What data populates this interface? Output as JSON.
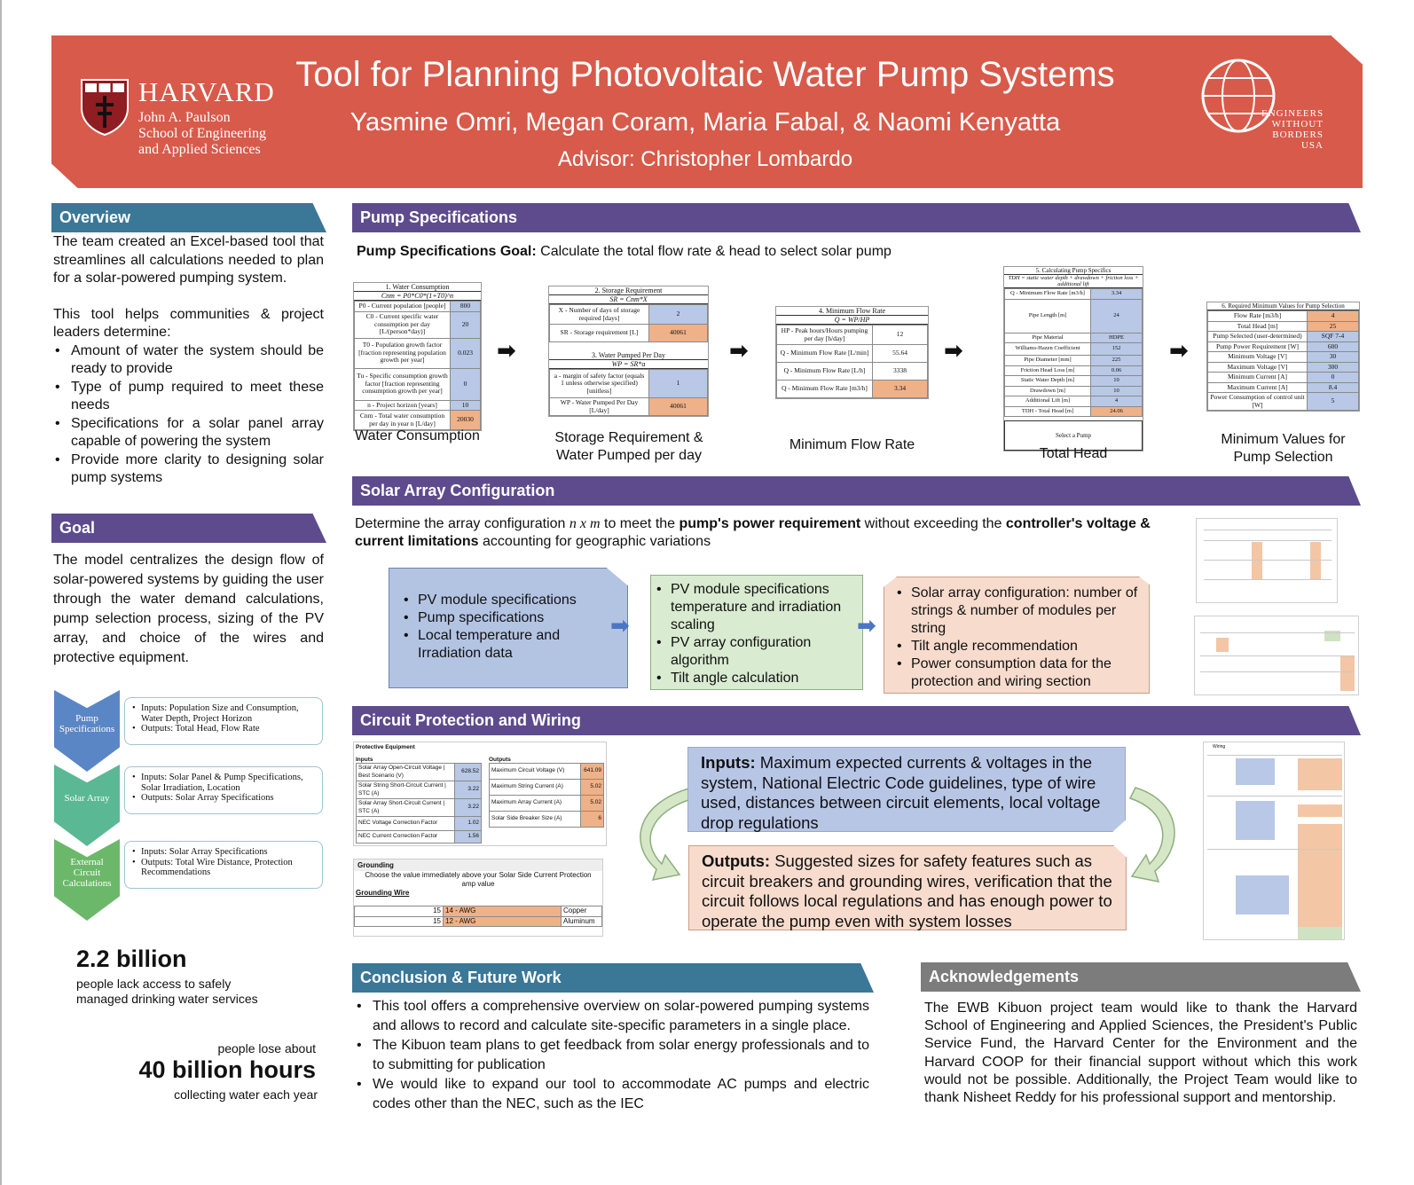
{
  "header": {
    "title": "Tool for Planning Photovoltaic Water Pump Systems",
    "authors": "Yasmine Omri, Megan Coram, Maria Fabal, & Naomi Kenyatta",
    "advisor": "Advisor: Christopher Lombardo",
    "harvard_name": "HARVARD",
    "harvard_sub_1": "John A. Paulson",
    "harvard_sub_2": "School of Engineering",
    "harvard_sub_3": "and Applied Sciences",
    "ewb_1": "ENGINEERS",
    "ewb_2": "WITHOUT",
    "ewb_3": "BORDERS",
    "ewb_4": "USA"
  },
  "overview": {
    "heading": "Overview",
    "p1": "The team created an Excel-based tool that streamlines all calculations needed to plan for a solar-powered pumping system.",
    "p2": "This tool helps communities & project leaders determine:",
    "bullets": [
      "Amount of water the system should be ready to provide",
      "Type of pump required to meet these needs",
      "Specifications for a solar panel array capable of powering the system",
      "Provide more clarity to designing solar pump systems"
    ]
  },
  "goal": {
    "heading": "Goal",
    "text": "The model centralizes the design flow of solar-powered systems by guiding the user through the water demand calculations, pump selection process, sizing of the PV array, and choice of the wires and protective equipment."
  },
  "flow": [
    {
      "label": "Pump Specifications",
      "inputs": "Inputs: Population Size and Consumption, Water Depth, Project Horizon",
      "outputs": "Outputs: Total Head, Flow Rate"
    },
    {
      "label": "Solar Array",
      "inputs": "Inputs: Solar Panel & Pump Specifications, Solar Irradiation, Location",
      "outputs": "Outputs: Solar Array Specifications"
    },
    {
      "label": "External Circuit Calculations",
      "inputs": "Inputs: Solar Array Specifications",
      "outputs": "Outputs: Total Wire Distance, Protection Recommendations"
    }
  ],
  "stats": {
    "s1_big": "2.2 billion",
    "s1_small": "people lack access to safely managed drinking water services",
    "s2_top": "people lose about",
    "s2_big": "40 billion hours",
    "s2_small": "collecting water each year"
  },
  "pump": {
    "heading": "Pump Specifications",
    "goal_bold": "Pump Specifications Goal:",
    "goal_text": " Calculate the total flow rate & head to select solar pump",
    "captions": [
      "Water Consumption",
      "Storage Requirement & Water Pumped per day",
      "Minimum Flow Rate",
      "Total Head",
      "Minimum Values for Pump Selection"
    ],
    "t1": {
      "title": "1. Water Consumption",
      "formula": "Cnm = P0*C0*(1+T0)^n",
      "rows": [
        {
          "k": "P0 - Current population [people]",
          "v": "800"
        },
        {
          "k": "C0 - Current specific water consumption per day [L/(person*day)]",
          "v": "20"
        },
        {
          "k": "T0 - Population growth factor [fraction representing population growth per year]",
          "v": "0.023"
        },
        {
          "k": "Tu - Specific consumption growth factor [fraction representing consumption growth per year]",
          "v": "0"
        },
        {
          "k": "n - Project horizon [years]",
          "v": "10"
        },
        {
          "k": "Cnm - Total water consumption per day in year n [L/day]",
          "v": "20030"
        }
      ]
    },
    "t2": {
      "title": "2. Storage Requirement",
      "formula": "SR = Cnm*X",
      "rows": [
        {
          "k": "X - Number of days of storage required [days]",
          "v": "2"
        },
        {
          "k": "SR - Storage requirement [L]",
          "v": "40061"
        }
      ],
      "title2": "3. Water Pumped Per Day",
      "formula2": "WP = SR*a",
      "rows2": [
        {
          "k": "a - margin of safety factor (equals 1 unless otherwise specified) [unitless]",
          "v": "1"
        },
        {
          "k": "WP - Water Pumped Per Day [L/day]",
          "v": "40061"
        }
      ]
    },
    "t3": {
      "title": "4. Minimum Flow Rate",
      "formula": "Q = WP/HP",
      "rows": [
        {
          "k": "HP - Peak hours/Hours pumping per day [h/day]",
          "v": "12"
        },
        {
          "k": "Q - Minimum Flow Rate [L/min]",
          "v": "55.64"
        },
        {
          "k": "Q - Minimum Flow Rate [L/h]",
          "v": "3338"
        },
        {
          "k": "Q - Minimum Flow Rate [m3/h]",
          "v": "3.34"
        }
      ]
    },
    "t4": {
      "title": "5. Calculating Pump Specifics",
      "formula": "TDH = static water depth + drawdown + friction loss + additional lift",
      "rows": [
        {
          "k": "Q - Minimum Flow Rate [m3/h]",
          "v": "3.34"
        },
        {
          "k": "Pipe Length [m]",
          "v": "24"
        },
        {
          "k": "Pipe Material",
          "v": "HDPE"
        },
        {
          "k": "Williams-Hazen Coefficient",
          "v": "152"
        },
        {
          "k": "Pipe Diameter [mm]",
          "v": "225"
        },
        {
          "k": "Friction Head Loss [m]",
          "v": "0.06"
        },
        {
          "k": "Static Water Depth [m]",
          "v": "10"
        },
        {
          "k": "Drawdown [m]",
          "v": "10"
        },
        {
          "k": "Additional Lift [m]",
          "v": "4"
        },
        {
          "k": "TDH - Total Head [m]",
          "v": "24.06"
        }
      ],
      "button": "Select a Pump"
    },
    "t5": {
      "title": "6. Required Minimum Values for Pump Selection",
      "rows": [
        {
          "k": "Flow Rate [m3/h]",
          "v": "4"
        },
        {
          "k": "Total Head [m]",
          "v": "25"
        },
        {
          "k": "Pump Selected (user-determined)",
          "v": "SQF 7-4"
        },
        {
          "k": "Pump Power Requirement [W]",
          "v": "600"
        },
        {
          "k": "Minimum Voltage [V]",
          "v": "30"
        },
        {
          "k": "Maximum Voltage [V]",
          "v": "300"
        },
        {
          "k": "Minimum Current [A]",
          "v": "0"
        },
        {
          "k": "Maximum Current [A]",
          "v": "8.4"
        },
        {
          "k": "Power Consumption of control unit [W]",
          "v": "5"
        }
      ]
    }
  },
  "solar": {
    "heading": "Solar Array Configuration",
    "intro_1": "Determine the array configuration ",
    "intro_nxm": "n x m",
    "intro_2": " to meet the ",
    "intro_b1": "pump's power requirement",
    "intro_3": " without exceeding the ",
    "intro_b2": "controller's voltage & current limitations",
    "intro_4": " accounting for geographic variations",
    "box1": [
      "PV module specifications",
      "Pump specifications",
      "Local temperature and Irradiation data"
    ],
    "box2": [
      "PV module specifications temperature and irradiation scaling",
      "PV array configuration algorithm",
      "Tilt angle calculation"
    ],
    "box3": [
      "Solar array configuration: number of strings & number of modules per string",
      "Tilt angle recommendation",
      "Power consumption data for the protection and wiring section"
    ]
  },
  "circuit": {
    "heading": "Circuit Protection and Wiring",
    "inputs_bold": "Inputs:",
    "inputs_text": " Maximum expected currents & voltages in the system, National Electric Code guidelines, type of wire used, distances between circuit elements, local voltage drop regulations",
    "outputs_bold": "Outputs:",
    "outputs_text": " Suggested sizes for safety features such as circuit breakers and grounding wires, verification that the circuit follows local regulations and has enough power to operate the pump even with system losses",
    "pe_title": "Protective Equipment",
    "pe_inputs_label": "Inputs",
    "pe_outputs_label": "Outputs",
    "pe_inputs": [
      {
        "k": "Solar Array Open-Circuit Voltage | Best Scenario (V)",
        "v": "628.52"
      },
      {
        "k": "Solar String Short-Circuit Current | STC (A)",
        "v": "3.22"
      },
      {
        "k": "Solar Array Short-Circuit Current | STC (A)",
        "v": "3.22"
      },
      {
        "k": "NEC Voltage Correction Factor",
        "v": "1.02"
      },
      {
        "k": "NEC Current Correction Factor",
        "v": "1.56"
      }
    ],
    "pe_outputs": [
      {
        "k": "Maximum Circuit Voltage (V)",
        "v": "641.09"
      },
      {
        "k": "Maximum String Current (A)",
        "v": "5.02"
      },
      {
        "k": "Maximum Array Current (A)",
        "v": "5.02"
      },
      {
        "k": "Solar Side Breaker Size (A)",
        "v": "6"
      }
    ],
    "gr_title": "Grounding",
    "gr_note": "Choose the value immediately above your Solar Side Current Protection amp value",
    "gr_label": "Grounding Wire",
    "gr_rows": [
      {
        "n": "15",
        "awg": "14 - AWG",
        "mat": "Copper"
      },
      {
        "n": "15",
        "awg": "12 - AWG",
        "mat": "Aluminum"
      }
    ],
    "wiring_title": "Wiring"
  },
  "conclusion": {
    "heading": "Conclusion & Future Work",
    "bullets": [
      "This tool offers a comprehensive overview on solar-powered pumping systems and allows to record and calculate site-specific parameters in a single place.",
      "The Kibuon team plans to get feedback from solar energy professionals and to to submitting for publication",
      "We would like to expand our tool to accommodate AC pumps and electric codes other than the NEC, such as the IEC"
    ]
  },
  "ack": {
    "heading": "Acknowledgements",
    "text": "The EWB Kibuon project team would like to thank the Harvard School of Engineering and Applied Sciences, the President's Public Service Fund, the Harvard Center for the Environment and the Harvard COOP for their financial support without which this work would not be possible. Additionally, the Project Team would like to thank Nisheet Reddy for his professional support and mentorship."
  },
  "colors": {
    "header_red": "#d85a4a",
    "section_blue": "#3b7797",
    "section_purple": "#5e4b8d",
    "section_gray": "#7c7c7c",
    "cell_blue": "#b8c8e6",
    "cell_orange": "#efb188"
  },
  "icons": [
    "harvard-shield-icon",
    "ewb-globe-icon",
    "right-arrow-icon",
    "curved-arrow-icon"
  ]
}
